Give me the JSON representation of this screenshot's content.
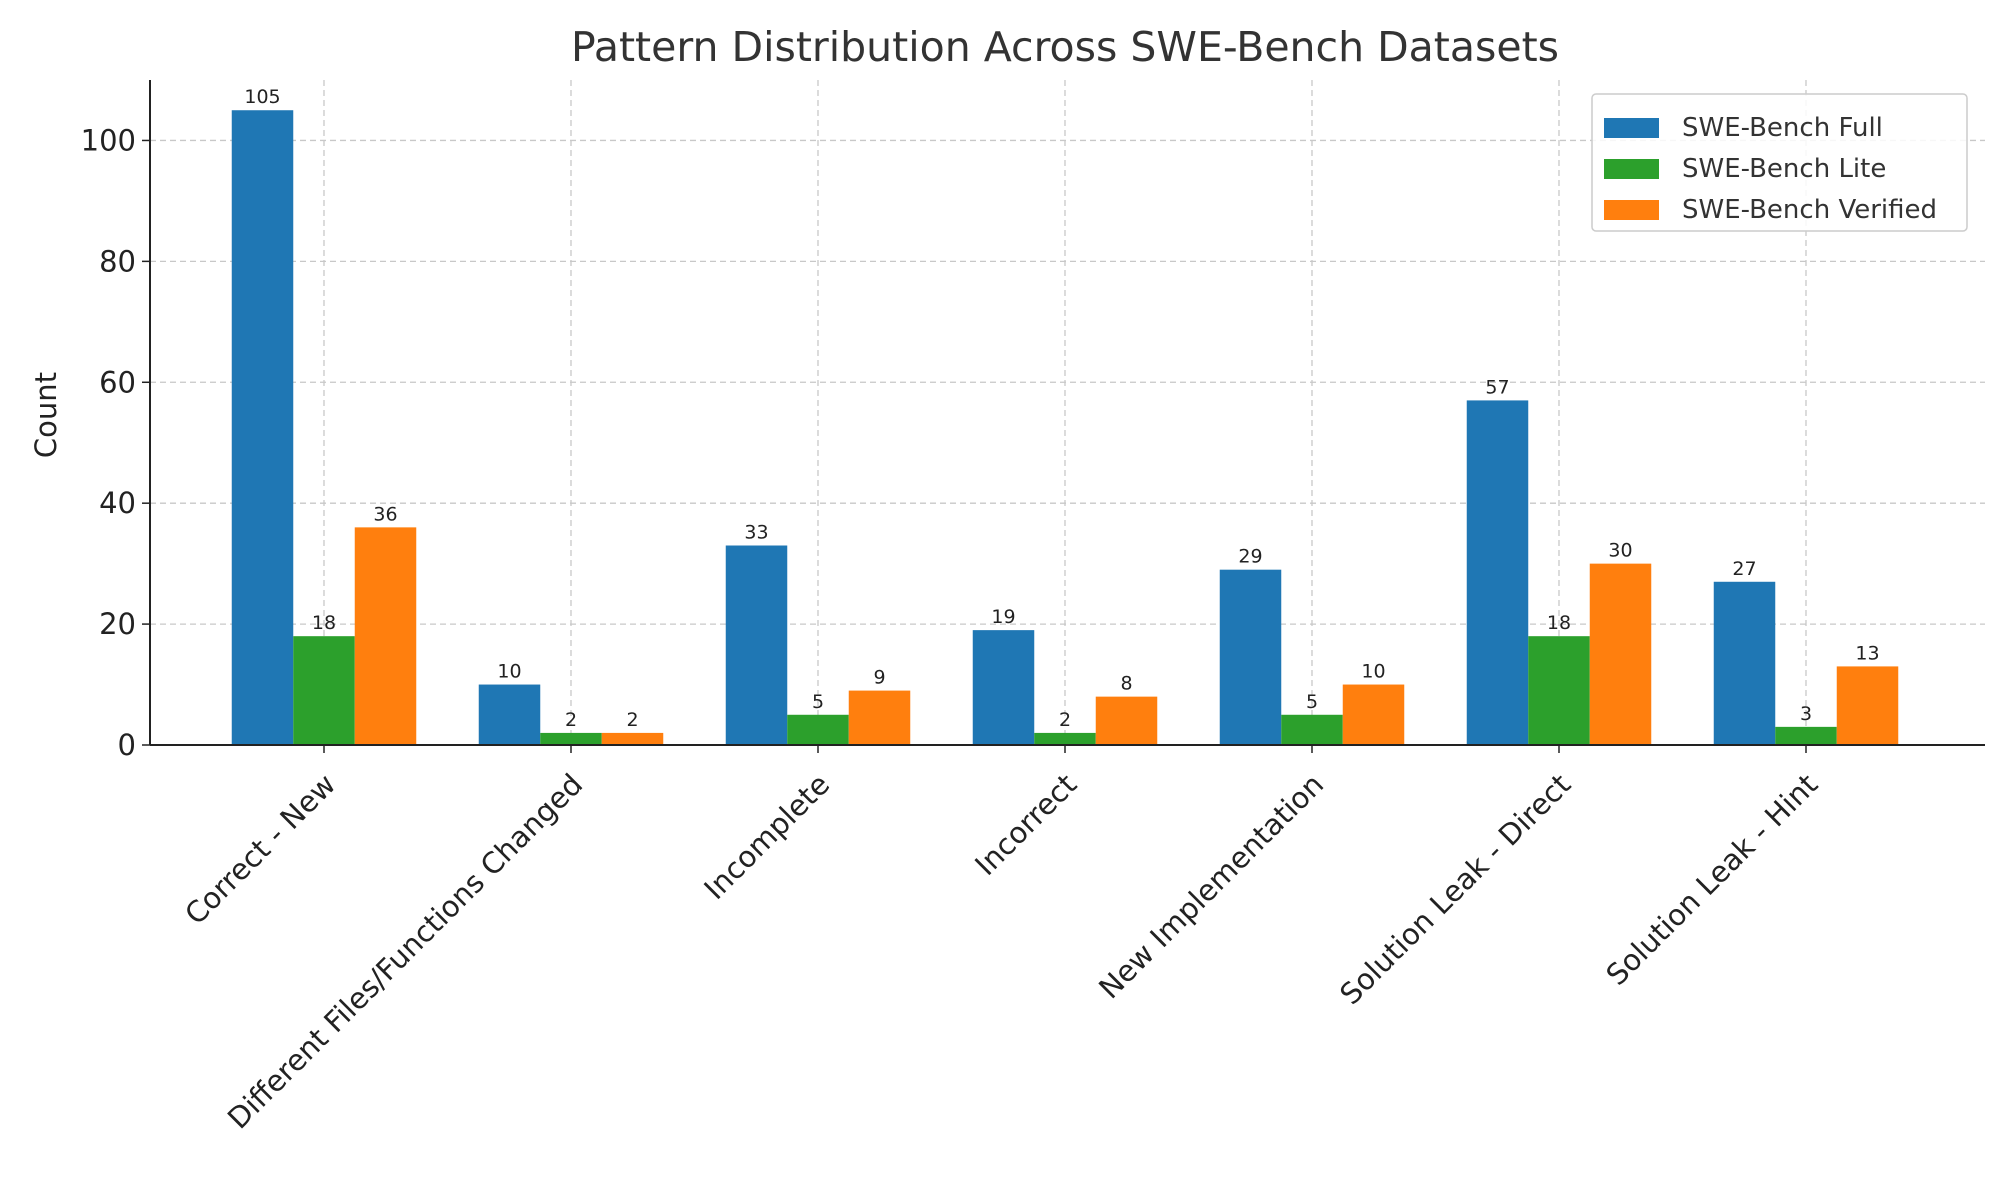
{
  "chart_data": {
    "type": "bar",
    "title": "Pattern Distribution Across SWE-Bench Datasets",
    "xlabel": "",
    "ylabel": "Count",
    "ylim": [
      0,
      110
    ],
    "yticks": [
      0,
      20,
      40,
      60,
      80,
      100
    ],
    "grid": true,
    "legend_position": "top-right",
    "categories": [
      "Correct - New",
      "Different Files/Functions Changed",
      "Incomplete",
      "Incorrect",
      "New Implementation",
      "Solution Leak - Direct",
      "Solution Leak - Hint"
    ],
    "series": [
      {
        "name": "SWE-Bench Full",
        "color": "#1f77b4",
        "values": [
          105,
          10,
          33,
          19,
          29,
          57,
          27
        ]
      },
      {
        "name": "SWE-Bench Lite",
        "color": "#2ca02c",
        "values": [
          18,
          2,
          5,
          2,
          5,
          18,
          3
        ]
      },
      {
        "name": "SWE-Bench Verified",
        "color": "#ff7f0e",
        "values": [
          36,
          2,
          9,
          8,
          10,
          30,
          13
        ]
      }
    ]
  }
}
